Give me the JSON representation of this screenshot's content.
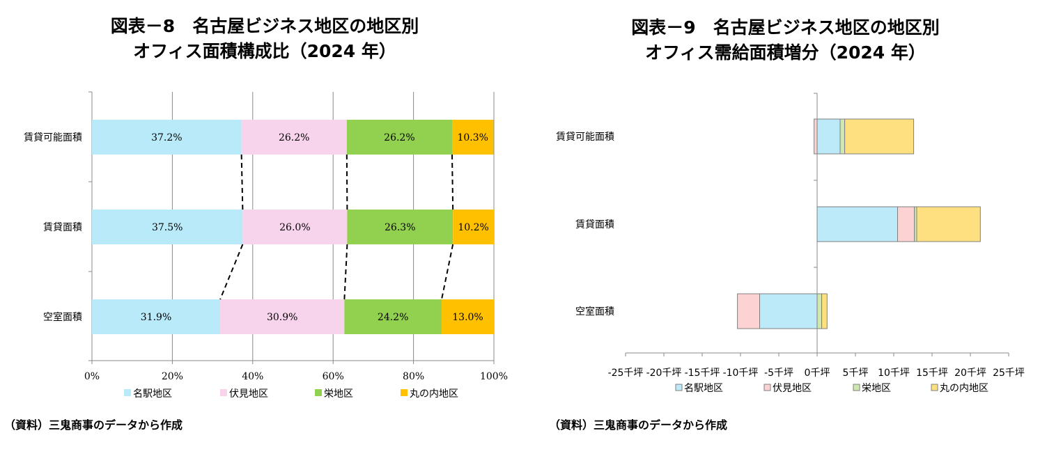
{
  "left": {
    "title_line1": "図表－8　名古屋ビジネス地区の地区別",
    "title_line2": "オフィス面積構成比（2024 年）",
    "source": "（資料）三鬼商事のデータから作成"
  },
  "right": {
    "title_line1": "図表－9　名古屋ビジネス地区の地区別",
    "title_line2": "オフィス需給面積増分（2024 年）",
    "source": "（資料）三鬼商事のデータから作成"
  },
  "chart_data": [
    {
      "type": "bar",
      "orientation": "horizontal",
      "stacked": "percent",
      "title": "図表－8　名古屋ビジネス地区の地区別 オフィス面積構成比（2024 年）",
      "categories": [
        "賃貸可能面積",
        "賃貸面積",
        "空室面積"
      ],
      "series": [
        {
          "name": "名駅地区",
          "values": [
            37.2,
            37.5,
            31.9
          ],
          "labels": [
            "37.2%",
            "37.5%",
            "31.9%"
          ],
          "color": "#b9eaf9"
        },
        {
          "name": "伏見地区",
          "values": [
            26.2,
            26.0,
            30.9
          ],
          "labels": [
            "26.2%",
            "26.0%",
            "30.9%"
          ],
          "color": "#f7d3ec"
        },
        {
          "name": "栄地区",
          "values": [
            26.2,
            26.3,
            24.2
          ],
          "labels": [
            "26.2%",
            "26.3%",
            "24.2%"
          ],
          "color": "#92d050"
        },
        {
          "name": "丸の内地区",
          "values": [
            10.3,
            10.2,
            13.0
          ],
          "labels": [
            "10.3%",
            "10.2%",
            "13.0%"
          ],
          "color": "#ffc000"
        }
      ],
      "xticks": [
        "0%",
        "20%",
        "40%",
        "60%",
        "80%",
        "100%"
      ],
      "xlim": [
        0,
        100
      ],
      "grid": true,
      "legend": "bottom",
      "connector_lines": "dashed"
    },
    {
      "type": "bar",
      "orientation": "horizontal",
      "stacked": true,
      "title": "図表－9　名古屋ビジネス地区の地区別 オフィス需給面積増分（2024 年）",
      "categories": [
        "賃貸可能面積",
        "賃貸面積",
        "空室面積"
      ],
      "series": [
        {
          "name": "名駅地区",
          "values": [
            3.0,
            10.5,
            -7.5
          ],
          "color": "#bdeaf8"
        },
        {
          "name": "伏見地区",
          "values": [
            -0.4,
            2.2,
            -2.9
          ],
          "color": "#fcd2d2"
        },
        {
          "name": "栄地区",
          "values": [
            0.6,
            0.3,
            0.6
          ],
          "color": "#cfe8b0"
        },
        {
          "name": "丸の内地区",
          "values": [
            9.0,
            8.3,
            0.7
          ],
          "color": "#ffe081"
        }
      ],
      "xticks": [
        "-25千坪",
        "-20千坪",
        "-15千坪",
        "-10千坪",
        "-5千坪",
        "0千坪",
        "5千坪",
        "10千坪",
        "15千坪",
        "20千坪",
        "25千坪"
      ],
      "xlim": [
        -25,
        25
      ],
      "unit": "千坪",
      "grid": false,
      "legend": "bottom"
    }
  ]
}
